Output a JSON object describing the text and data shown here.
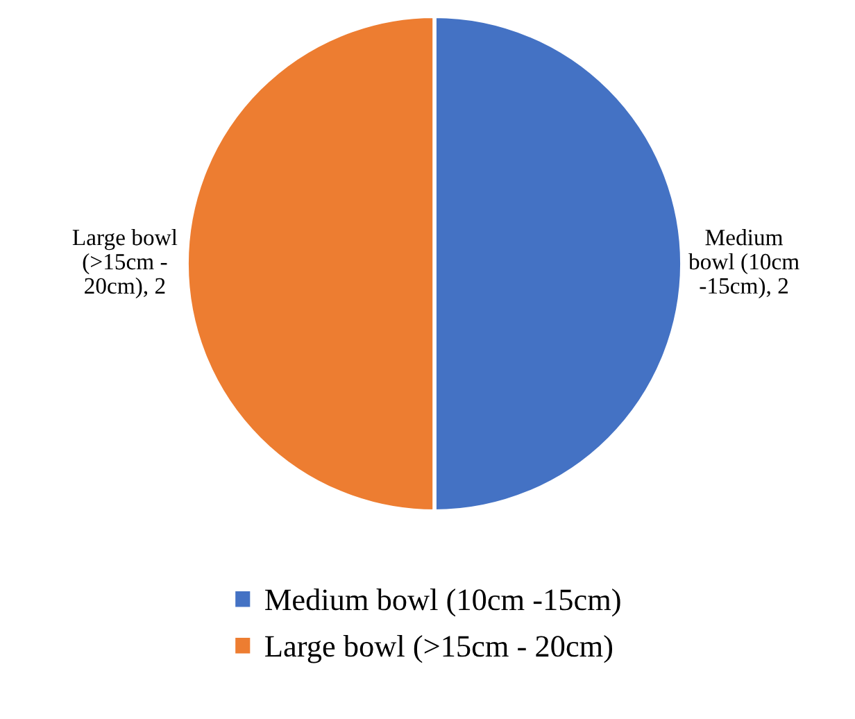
{
  "chart_data": {
    "type": "pie",
    "categories": [
      "Medium bowl (10cm -15cm)",
      "Large bowl (>15cm - 20cm)"
    ],
    "values": [
      2,
      2
    ],
    "colors": [
      "#4472c4",
      "#ed7d31"
    ],
    "value_labels": [
      "Medium\nbowl (10cm\n-15cm), 2",
      "Large bowl\n(>15cm -\n20cm), 2"
    ],
    "legend": "bottom"
  }
}
